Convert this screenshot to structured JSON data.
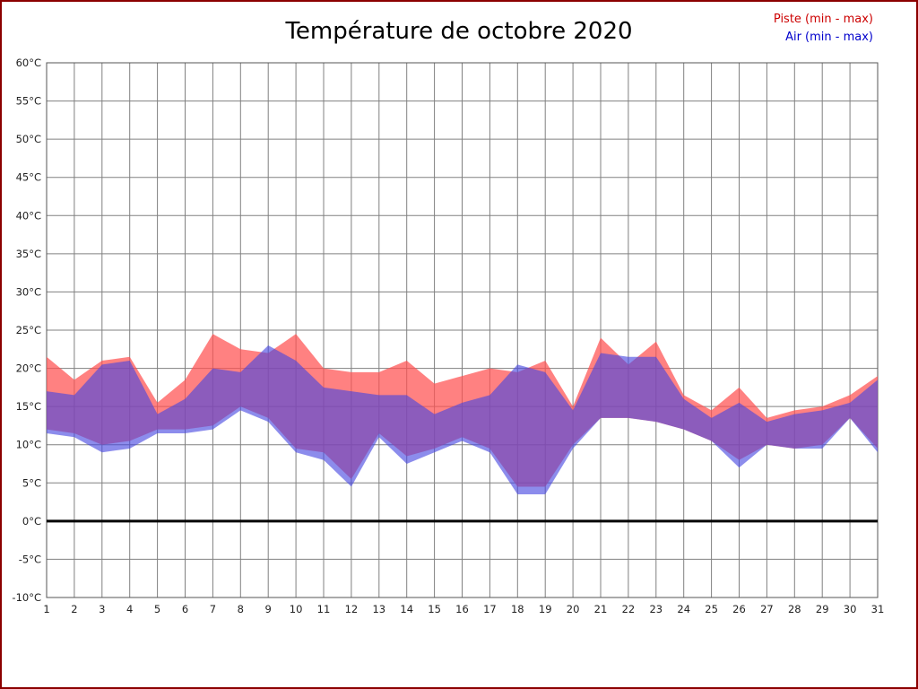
{
  "title": "Température de octobre 2020",
  "legend": {
    "piste": "Piste (min - max)",
    "air": "Air (min - max)",
    "piste_color": "#cc0000",
    "air_color": "#0000cc"
  },
  "chart_data": {
    "type": "area",
    "title": "Température de octobre 2020",
    "xlabel": "",
    "ylabel": "",
    "x": [
      1,
      2,
      3,
      4,
      5,
      6,
      7,
      8,
      9,
      10,
      11,
      12,
      13,
      14,
      15,
      16,
      17,
      18,
      19,
      20,
      21,
      22,
      23,
      24,
      25,
      26,
      27,
      28,
      29,
      30,
      31
    ],
    "series": [
      {
        "name": "Piste (min - max)",
        "fill": "#ff5050",
        "opacity": 0.72,
        "max": [
          21.5,
          18.5,
          21,
          21.5,
          15.5,
          18.5,
          24.5,
          22.5,
          22,
          24.5,
          20,
          19.5,
          19.5,
          21,
          18,
          19,
          20,
          19.5,
          21,
          15,
          24,
          20.5,
          23.5,
          16.5,
          14.5,
          17.5,
          13.5,
          14.5,
          15,
          16.5,
          19
        ],
        "min": [
          12,
          11.5,
          10,
          10.5,
          12,
          12,
          12.5,
          15,
          13.5,
          9.5,
          9,
          5.5,
          11.5,
          8.5,
          9.5,
          11,
          9.5,
          4.5,
          4.5,
          10,
          13.5,
          13.5,
          13,
          12,
          10.5,
          8,
          10,
          9.5,
          10,
          13.5,
          9.5
        ]
      },
      {
        "name": "Air (min - max)",
        "fill": "#4646e0",
        "opacity": 0.62,
        "max": [
          17,
          16.5,
          20.5,
          21,
          14,
          16,
          20,
          19.5,
          23,
          21,
          17.5,
          17,
          16.5,
          16.5,
          14,
          15.5,
          16.5,
          20.5,
          19.5,
          14.5,
          22,
          21.5,
          21.5,
          16,
          13.5,
          15.5,
          13,
          14,
          14.5,
          15.5,
          18.5
        ],
        "min": [
          11.5,
          11,
          9,
          9.5,
          11.5,
          11.5,
          12,
          14.5,
          13,
          9,
          8,
          4.5,
          11,
          7.5,
          9,
          10.5,
          9,
          3.5,
          3.5,
          9.5,
          13.5,
          13.5,
          13,
          12,
          10.5,
          7,
          10,
          9.5,
          9.5,
          13.5,
          9
        ]
      }
    ],
    "ylim": [
      -10,
      60
    ],
    "ytick_step": 5,
    "grid": true,
    "zero_line": true,
    "legend_position": "top-right",
    "y_ticks": [
      "60°C",
      "55°C",
      "50°C",
      "45°C",
      "40°C",
      "35°C",
      "30°C",
      "25°C",
      "20°C",
      "15°C",
      "10°C",
      "5°C",
      "0°C",
      "-5°C",
      "-10°C"
    ],
    "x_ticks": [
      "1",
      "2",
      "3",
      "4",
      "5",
      "6",
      "7",
      "8",
      "9",
      "10",
      "11",
      "12",
      "13",
      "14",
      "15",
      "16",
      "17",
      "18",
      "19",
      "20",
      "21",
      "22",
      "23",
      "24",
      "25",
      "26",
      "27",
      "28",
      "29",
      "30",
      "31"
    ]
  }
}
